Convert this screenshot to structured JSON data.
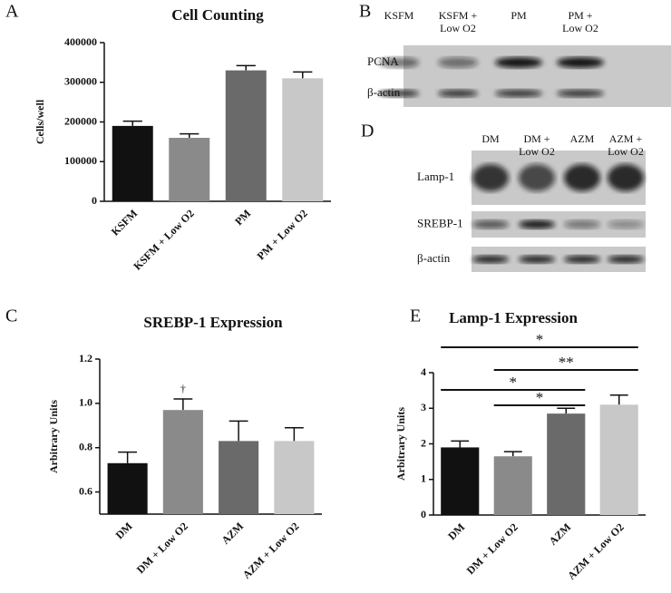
{
  "panels": {
    "a": "A",
    "b": "B",
    "c": "C",
    "d": "D",
    "e": "E"
  },
  "blots": [
    {
      "lanes": [
        [
          "KSFM"
        ],
        [
          "KSFM +",
          "Low O2"
        ],
        [
          "PM"
        ],
        [
          "PM +",
          "Low O2"
        ]
      ],
      "rows": [
        "PCNA",
        "β-actin"
      ]
    },
    {
      "lanes": [
        [
          "DM"
        ],
        [
          "DM +",
          "Low O2"
        ],
        [
          "AZM"
        ],
        [
          "AZM +",
          "Low O2"
        ]
      ],
      "rows": [
        "Lamp-1",
        "SREBP-1",
        "β-actin"
      ]
    }
  ],
  "chart_data": [
    {
      "type": "bar",
      "title": "Cell Counting",
      "y_label": "Cells/well",
      "categories": [
        "KSFM",
        "KSFM + Low O2",
        "PM",
        "PM + Low O2"
      ],
      "values": [
        190000,
        160000,
        330000,
        310000
      ],
      "errors": [
        12000,
        10000,
        12000,
        16000
      ],
      "colors": [
        "#111111",
        "#8a8a8a",
        "#6a6a6a",
        "#c8c8c8"
      ],
      "ylim": [
        0,
        400000
      ],
      "yticks": [
        0,
        100000,
        200000,
        300000,
        400000
      ]
    },
    {
      "type": "bar",
      "title": "SREBP-1 Expression",
      "y_label": "Arbitrary Units",
      "categories": [
        "DM",
        "DM + Low O2",
        "AZM",
        "AZM + Low O2"
      ],
      "values": [
        0.73,
        0.97,
        0.83,
        0.83
      ],
      "errors": [
        0.05,
        0.05,
        0.09,
        0.06
      ],
      "colors": [
        "#111111",
        "#8a8a8a",
        "#6a6a6a",
        "#c8c8c8"
      ],
      "ylim": [
        0.5,
        1.2
      ],
      "yticks": [
        0.6,
        0.8,
        {
          "value": 1,
          "label": "1.0"
        },
        1.2
      ],
      "annotations": [
        "†"
      ]
    },
    {
      "type": "bar",
      "title": "Lamp-1 Expression",
      "y_label": "Arbitrary Units",
      "categories": [
        "DM",
        "DM + Low O2",
        "AZM",
        "AZM + Low O2"
      ],
      "values": [
        1.9,
        1.65,
        2.85,
        3.1
      ],
      "errors": [
        0.18,
        0.13,
        0.15,
        0.27
      ],
      "colors": [
        "#111111",
        "#8a8a8a",
        "#6a6a6a",
        "#c8c8c8"
      ],
      "ylim": [
        0,
        4
      ],
      "yticks": [
        0,
        1,
        2,
        3,
        4
      ],
      "annotations": [
        "*",
        "**",
        "*",
        "*"
      ]
    }
  ]
}
